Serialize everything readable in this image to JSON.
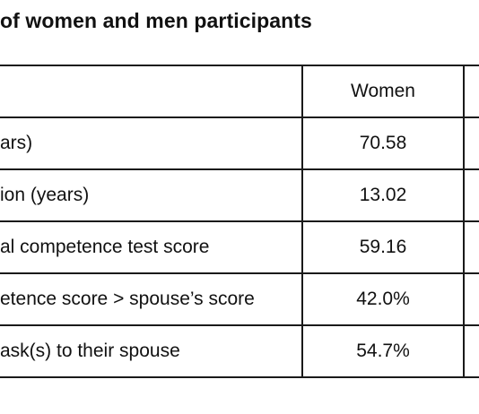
{
  "title": "of women and men participants",
  "table": {
    "header": {
      "label": "",
      "women": "Women"
    },
    "rows": [
      {
        "label": "ars)",
        "women": "70.58"
      },
      {
        "label": "ion (years)",
        "women": "13.02"
      },
      {
        "label": "al competence test score",
        "women": "59.16"
      },
      {
        "label": "etence score > spouse’s score",
        "women": "42.0%"
      },
      {
        "label": "ask(s) to their spouse",
        "women": "54.7%"
      }
    ]
  }
}
